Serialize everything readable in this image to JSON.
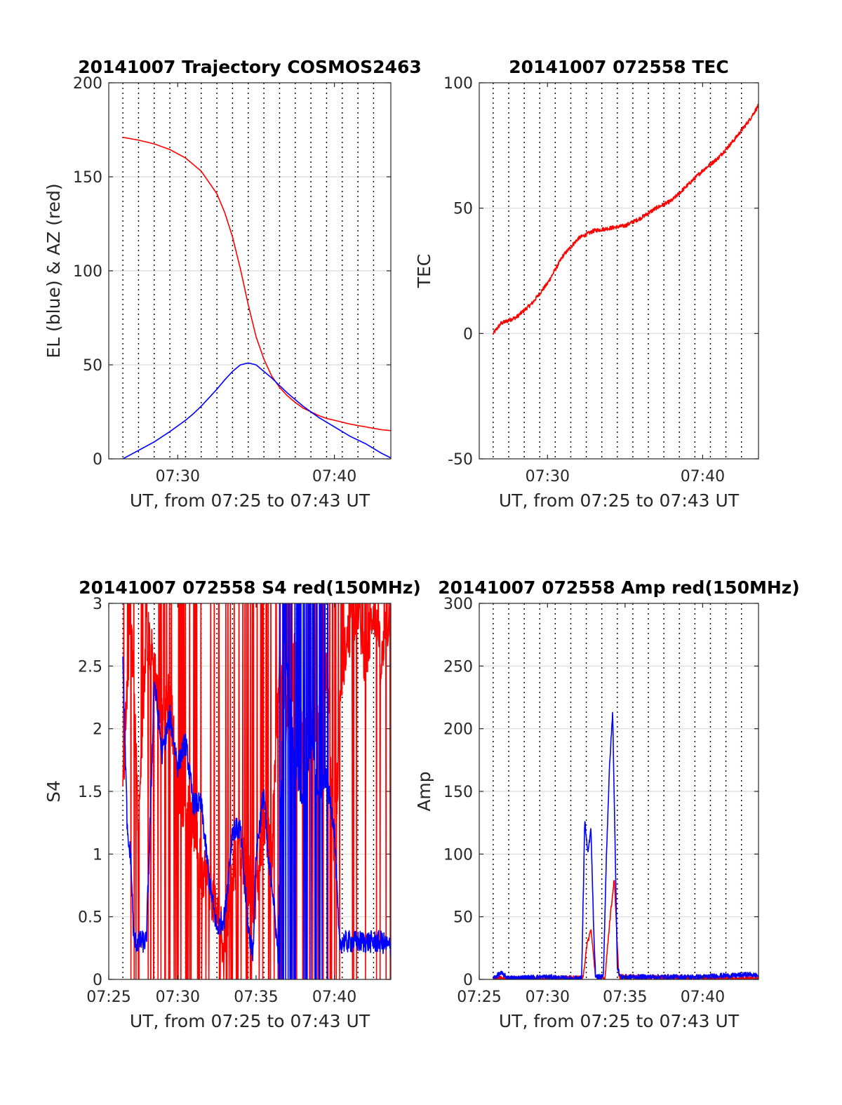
{
  "chart_data": [
    {
      "type": "line",
      "title": "20141007 Trajectory COSMOS2463",
      "xlabel": "UT, from 07:25 to 07:43 UT",
      "ylabel": "EL (blue) & AZ (red)",
      "xlim": [
        25.6,
        43.6
      ],
      "ylim": [
        0,
        200
      ],
      "yticks": [
        0,
        50,
        100,
        150,
        200
      ],
      "xticks": [
        {
          "x": 30,
          "label": "07:30"
        },
        {
          "x": 40,
          "label": "07:40"
        }
      ],
      "hgrid": [
        50,
        100,
        150
      ],
      "vgrid": [
        26.5,
        27.5,
        28.5,
        29.5,
        30.5,
        31.5,
        32.5,
        33.5,
        34.5,
        35.5,
        36.5,
        37.5,
        38.5,
        39.5,
        40.5,
        41.5,
        42.5
      ],
      "series": [
        {
          "color": "#ff0000",
          "points": [
            [
              26.5,
              171
            ],
            [
              27.5,
              169.5
            ],
            [
              28.5,
              167.5
            ],
            [
              29.5,
              164.5
            ],
            [
              30.5,
              160
            ],
            [
              31.5,
              153
            ],
            [
              32.5,
              141
            ],
            [
              33,
              131
            ],
            [
              33.5,
              118
            ],
            [
              34,
              101
            ],
            [
              34.5,
              82
            ],
            [
              35,
              65
            ],
            [
              35.5,
              53
            ],
            [
              36,
              44
            ],
            [
              36.5,
              38
            ],
            [
              37,
              33.5
            ],
            [
              37.5,
              30
            ],
            [
              38,
              27
            ],
            [
              38.5,
              25
            ],
            [
              39,
              23
            ],
            [
              39.5,
              21.5
            ],
            [
              40,
              20.5
            ],
            [
              40.5,
              19.5
            ],
            [
              41,
              18.5
            ],
            [
              41.5,
              17.7
            ],
            [
              42,
              17
            ],
            [
              42.5,
              16.2
            ],
            [
              43,
              15.5
            ],
            [
              43.6,
              15
            ]
          ]
        },
        {
          "color": "#0000ff",
          "points": [
            [
              26.5,
              0
            ],
            [
              27.5,
              4.5
            ],
            [
              28.5,
              9
            ],
            [
              29.5,
              14.5
            ],
            [
              30.5,
              20.5
            ],
            [
              31,
              24
            ],
            [
              31.5,
              28
            ],
            [
              32,
              32.5
            ],
            [
              32.5,
              37
            ],
            [
              33,
              42
            ],
            [
              33.5,
              46.5
            ],
            [
              34,
              50
            ],
            [
              34.5,
              51
            ],
            [
              35,
              50
            ],
            [
              35.5,
              46.5
            ],
            [
              36,
              43
            ],
            [
              36.5,
              39
            ],
            [
              37,
              35
            ],
            [
              37.5,
              31.5
            ],
            [
              38,
              28
            ],
            [
              38.5,
              25
            ],
            [
              39,
              22
            ],
            [
              39.5,
              19.5
            ],
            [
              40,
              17
            ],
            [
              40.5,
              14.5
            ],
            [
              41,
              12
            ],
            [
              41.5,
              10
            ],
            [
              42,
              8
            ],
            [
              42.5,
              5.5
            ],
            [
              43,
              3
            ],
            [
              43.6,
              0.5
            ]
          ]
        }
      ]
    },
    {
      "type": "line",
      "title": "20141007 072558 TEC",
      "xlabel": "UT, from 07:25 to 07:43 UT",
      "ylabel": "TEC",
      "xlim": [
        25.6,
        43.6
      ],
      "ylim": [
        -50,
        100
      ],
      "yticks": [
        -50,
        0,
        50,
        100
      ],
      "xticks": [
        {
          "x": 30,
          "label": "07:30"
        },
        {
          "x": 40,
          "label": "07:40"
        }
      ],
      "hgrid": [
        0,
        50
      ],
      "vgrid": [
        26.5,
        27.5,
        28.5,
        29.5,
        30.5,
        31.5,
        32.5,
        33.5,
        34.5,
        35.5,
        36.5,
        37.5,
        38.5,
        39.5,
        40.5,
        41.5,
        42.5
      ],
      "series": [
        {
          "color": "#ff0000",
          "noise": 0.8,
          "points": [
            [
              26.5,
              0
            ],
            [
              27,
              4
            ],
            [
              28,
              6.5
            ],
            [
              29,
              12
            ],
            [
              30,
              20
            ],
            [
              31,
              31
            ],
            [
              32,
              38
            ],
            [
              33,
              41
            ],
            [
              34,
              42
            ],
            [
              35,
              43
            ],
            [
              36,
              46
            ],
            [
              37,
              50
            ],
            [
              38,
              53
            ],
            [
              39,
              59
            ],
            [
              40,
              65
            ],
            [
              41,
              70
            ],
            [
              42,
              77
            ],
            [
              43,
              85
            ],
            [
              43.6,
              91
            ]
          ]
        }
      ]
    },
    {
      "type": "line",
      "title": "20141007 072558 S4 red(150MHz)",
      "xlabel": "UT, from 07:25 to 07:43 UT",
      "ylabel": "S4",
      "xlim": [
        25.6,
        43.6
      ],
      "ylim": [
        0,
        3
      ],
      "yticks": [
        0,
        0.5,
        1,
        1.5,
        2,
        2.5,
        3
      ],
      "xticks": [
        {
          "x": 25.6,
          "label": "07:25"
        },
        {
          "x": 30,
          "label": "07:30"
        },
        {
          "x": 35,
          "label": "07:35"
        },
        {
          "x": 40,
          "label": "07:40"
        }
      ],
      "hgrid": [
        0.5,
        1,
        1.5,
        2,
        2.5
      ],
      "vgrid": [
        26.5,
        27.5,
        28.5,
        29.5,
        30.5,
        31.5,
        32.5,
        33.5,
        34.5,
        35.5,
        36.5,
        37.5,
        38.5,
        39.5,
        40.5,
        41.5,
        42.5
      ],
      "series": [
        {
          "color": "#ff0000",
          "spiky": true,
          "points": [
            [
              26.5,
              1.5
            ],
            [
              27,
              3
            ],
            [
              27.5,
              1.2
            ],
            [
              28,
              2.8
            ],
            [
              28.5,
              2.5
            ],
            [
              29,
              2
            ],
            [
              29.5,
              2.3
            ],
            [
              30,
              1.5
            ],
            [
              30.5,
              1.4
            ],
            [
              31,
              1.2
            ],
            [
              31.5,
              0.9
            ],
            [
              32,
              0.8
            ],
            [
              32.5,
              0.5
            ],
            [
              33,
              0.3
            ],
            [
              33.5,
              0.9
            ],
            [
              34,
              1
            ],
            [
              34.5,
              0.8
            ],
            [
              35,
              0.6
            ],
            [
              35.5,
              1.3
            ],
            [
              36,
              1
            ],
            [
              36.5,
              2.5
            ],
            [
              37,
              2
            ],
            [
              37.5,
              2.6
            ],
            [
              38,
              1.8
            ],
            [
              38.5,
              2.2
            ],
            [
              39,
              2
            ],
            [
              39.5,
              2.5
            ],
            [
              40,
              1
            ],
            [
              40.5,
              2.5
            ],
            [
              41,
              2.8
            ],
            [
              41.5,
              3
            ],
            [
              42,
              2.5
            ],
            [
              42.5,
              3
            ],
            [
              43,
              2.5
            ],
            [
              43.6,
              3
            ]
          ]
        },
        {
          "color": "#0000ff",
          "spiky": false,
          "points": [
            [
              26.5,
              2.6
            ],
            [
              26.8,
              1.1
            ],
            [
              27,
              1.0
            ],
            [
              27.2,
              0.3
            ],
            [
              27.5,
              0.3
            ],
            [
              28,
              0.3
            ],
            [
              28.3,
              1.5
            ],
            [
              28.5,
              2.4
            ],
            [
              29,
              1.8
            ],
            [
              29.5,
              2.1
            ],
            [
              30,
              1.7
            ],
            [
              30.5,
              1.9
            ],
            [
              31,
              1.4
            ],
            [
              31.5,
              1.4
            ],
            [
              32,
              0.8
            ],
            [
              32.5,
              0.4
            ],
            [
              33,
              0.5
            ],
            [
              33.5,
              1.2
            ],
            [
              34,
              1.2
            ],
            [
              34.5,
              0.4
            ],
            [
              34.8,
              0.2
            ],
            [
              35,
              1.0
            ],
            [
              35.5,
              1.5
            ],
            [
              35.8,
              0.9
            ],
            [
              36,
              0.8
            ],
            [
              36.4,
              0.2
            ],
            [
              36.8,
              2.8
            ],
            [
              37.5,
              1.7
            ],
            [
              38,
              1.4
            ],
            [
              38.5,
              1.9
            ],
            [
              39,
              1.5
            ],
            [
              39.5,
              1.6
            ],
            [
              40,
              1.2
            ],
            [
              40.3,
              0.3
            ],
            [
              41,
              0.3
            ],
            [
              42,
              0.3
            ],
            [
              43,
              0.3
            ],
            [
              43.6,
              0.25
            ]
          ]
        }
      ]
    },
    {
      "type": "line",
      "title": "20141007 072558 Amp red(150MHz)",
      "xlabel": "UT, from 07:25 to 07:43 UT",
      "ylabel": "Amp",
      "xlim": [
        25.6,
        43.6
      ],
      "ylim": [
        0,
        300
      ],
      "yticks": [
        0,
        50,
        100,
        150,
        200,
        250,
        300
      ],
      "xticks": [
        {
          "x": 25.6,
          "label": "07:25"
        },
        {
          "x": 30,
          "label": "07:30"
        },
        {
          "x": 35,
          "label": "07:35"
        },
        {
          "x": 40,
          "label": "07:40"
        }
      ],
      "hgrid": [
        50,
        100,
        150,
        200,
        250
      ],
      "vgrid": [
        26.5,
        27.5,
        28.5,
        29.5,
        30.5,
        31.5,
        32.5,
        33.5,
        34.5,
        35.5,
        36.5,
        37.5,
        38.5,
        39.5,
        40.5,
        41.5,
        42.5
      ],
      "series": [
        {
          "color": "#ff0000",
          "noise": 2,
          "points": [
            [
              26.5,
              0.5
            ],
            [
              32.3,
              1
            ],
            [
              32.5,
              25
            ],
            [
              32.8,
              40
            ],
            [
              33.1,
              2
            ],
            [
              33.7,
              1
            ],
            [
              34,
              45
            ],
            [
              34.3,
              80
            ],
            [
              34.6,
              2
            ],
            [
              43.6,
              0.5
            ]
          ]
        },
        {
          "color": "#0000ff",
          "noise": 2,
          "points": [
            [
              26.5,
              1
            ],
            [
              27,
              5
            ],
            [
              27.5,
              1
            ],
            [
              30,
              2
            ],
            [
              31,
              1
            ],
            [
              32.2,
              1
            ],
            [
              32.4,
              127
            ],
            [
              32.6,
              100
            ],
            [
              32.8,
              120
            ],
            [
              33.0,
              30
            ],
            [
              33.1,
              2
            ],
            [
              33.6,
              2
            ],
            [
              33.8,
              100
            ],
            [
              34.0,
              170
            ],
            [
              34.2,
              213
            ],
            [
              34.5,
              10
            ],
            [
              34.7,
              2
            ],
            [
              40,
              2
            ],
            [
              41,
              3
            ],
            [
              42,
              3
            ],
            [
              43,
              4
            ],
            [
              43.6,
              3
            ]
          ]
        }
      ]
    }
  ]
}
